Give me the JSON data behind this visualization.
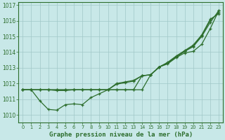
{
  "title": "Graphe pression niveau de la mer (hPa)",
  "bg_color": "#c8e8e8",
  "grid_color": "#a0c8c8",
  "line_color": "#2d6e2d",
  "x_ticks": [
    0,
    1,
    2,
    3,
    4,
    5,
    6,
    7,
    8,
    9,
    10,
    11,
    12,
    13,
    14,
    15,
    16,
    17,
    18,
    19,
    20,
    21,
    22,
    23
  ],
  "ylim": [
    1009.5,
    1017.2
  ],
  "yticks": [
    1010,
    1011,
    1012,
    1013,
    1014,
    1015,
    1016,
    1017
  ],
  "lines": [
    [
      1011.6,
      1011.6,
      1010.9,
      1010.35,
      1010.3,
      1010.65,
      1010.7,
      1010.65,
      1011.1,
      1011.35,
      1011.6,
      1012.0,
      1012.1,
      1012.2,
      1012.5,
      1012.55,
      1013.05,
      1013.35,
      1013.75,
      1014.1,
      1014.45,
      1015.1,
      1016.1,
      1016.45
    ],
    [
      1011.6,
      1011.6,
      1011.6,
      1011.6,
      1011.55,
      1011.55,
      1011.6,
      1011.6,
      1011.6,
      1011.6,
      1011.6,
      1011.95,
      1012.05,
      1012.15,
      1012.5,
      1012.55,
      1013.05,
      1013.3,
      1013.7,
      1014.05,
      1014.4,
      1015.05,
      1016.05,
      1016.5
    ],
    [
      1011.6,
      1011.6,
      1011.6,
      1011.6,
      1011.6,
      1011.6,
      1011.6,
      1011.6,
      1011.6,
      1011.6,
      1011.6,
      1011.6,
      1011.6,
      1011.6,
      1012.5,
      1012.55,
      1013.05,
      1013.3,
      1013.7,
      1014.05,
      1014.35,
      1015.0,
      1015.9,
      1016.65
    ],
    [
      1011.6,
      1011.6,
      1011.6,
      1011.6,
      1011.6,
      1011.6,
      1011.6,
      1011.6,
      1011.6,
      1011.6,
      1011.6,
      1011.6,
      1011.6,
      1011.6,
      1011.6,
      1012.55,
      1013.05,
      1013.25,
      1013.65,
      1013.95,
      1014.05,
      1014.5,
      1015.5,
      1016.65
    ]
  ]
}
